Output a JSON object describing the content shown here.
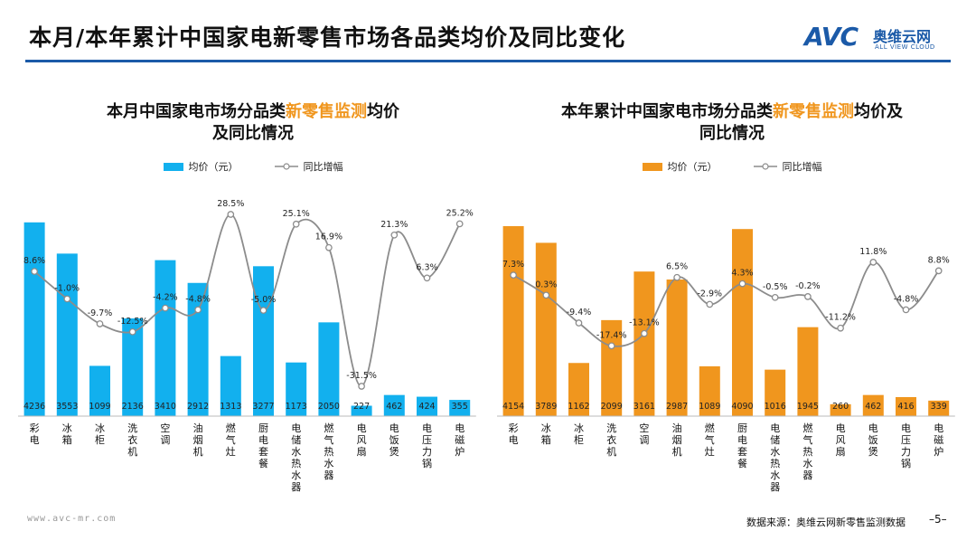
{
  "page": {
    "title": "本月/本年累计中国家电新零售市场各品类均价及同比变化",
    "logo_mark": "AVC",
    "logo_cn": "奥维云网",
    "logo_en": "ALL VIEW CLOUD",
    "footer_url": "www.avc-mr.com",
    "footer_source": "数据来源：奥维云网新零售监测数据",
    "page_number": "–5–"
  },
  "colors": {
    "left_bar": "#12b0ee",
    "right_bar": "#f0961e",
    "line": "#8c8c8c",
    "accent": "#1b5aa8",
    "highlight": "#f0961e"
  },
  "chart_data": [
    {
      "type": "bar",
      "title_pre": "本月中国家电市场分品类",
      "title_hl": "新零售监测",
      "title_post": "均价",
      "title_line2": "及同比情况",
      "legend_bar": "均价（元）",
      "legend_line": "同比增幅",
      "categories": [
        "彩电",
        "冰箱",
        "冰柜",
        "洗衣机",
        "空调",
        "油烟机",
        "燃气灶",
        "厨电套餐",
        "电储水热水器",
        "燃气热水器",
        "电风扇",
        "电饭煲",
        "电压力锅",
        "电磁炉"
      ],
      "values": [
        4236,
        3553,
        1099,
        2136,
        3410,
        2912,
        1313,
        3277,
        1173,
        2050,
        227,
        462,
        424,
        355
      ],
      "value_labels": [
        "4236",
        "3553",
        "1099",
        "2136",
        "3410",
        "2912",
        "1313",
        "3277",
        "1173",
        "2050",
        "227",
        "462",
        "424",
        "355"
      ],
      "yoy": [
        8.6,
        -1.0,
        -9.7,
        -12.5,
        -4.2,
        -4.8,
        28.5,
        -5.0,
        25.1,
        16.9,
        -31.5,
        21.3,
        6.3,
        25.2
      ],
      "yoy_labels": [
        "8.6%",
        "-1.0%",
        "-9.7%",
        "-12.5%",
        "-4.2%",
        "-4.8%",
        "28.5%",
        "-5.0%",
        "25.1%",
        "16.9%",
        "-31.5%",
        "21.3%",
        "6.3%",
        "25.2%"
      ]
    },
    {
      "type": "bar",
      "title_pre": "本年累计中国家电市场分品类",
      "title_hl": "新零售监测",
      "title_post": "均价及",
      "title_line2": "同比情况",
      "legend_bar": "均价（元）",
      "legend_line": "同比增幅",
      "categories": [
        "彩电",
        "冰箱",
        "冰柜",
        "洗衣机",
        "空调",
        "油烟机",
        "燃气灶",
        "厨电套餐",
        "电储水热水器",
        "燃气热水器",
        "电风扇",
        "电饭煲",
        "电压力锅",
        "电磁炉"
      ],
      "values": [
        4154,
        3789,
        1162,
        2099,
        3161,
        2987,
        1089,
        4090,
        1016,
        1945,
        260,
        462,
        416,
        339
      ],
      "value_labels": [
        "4154",
        "3789",
        "1162",
        "2099",
        "3161",
        "2987",
        "1089",
        "4090",
        "1016",
        "1945",
        "260",
        "462",
        "416",
        "339"
      ],
      "yoy": [
        7.3,
        0.3,
        -9.4,
        -17.4,
        -13.1,
        6.5,
        -2.9,
        4.3,
        -0.5,
        -0.2,
        -11.2,
        11.8,
        -4.8,
        8.8
      ],
      "yoy_labels": [
        "7.3%",
        "0.3%",
        "-9.4%",
        "-17.4%",
        "-13.1%",
        "6.5%",
        "-2.9%",
        "4.3%",
        "-0.5%",
        "-0.2%",
        "-11.2%",
        "11.8%",
        "-4.8%",
        "8.8%"
      ]
    }
  ]
}
